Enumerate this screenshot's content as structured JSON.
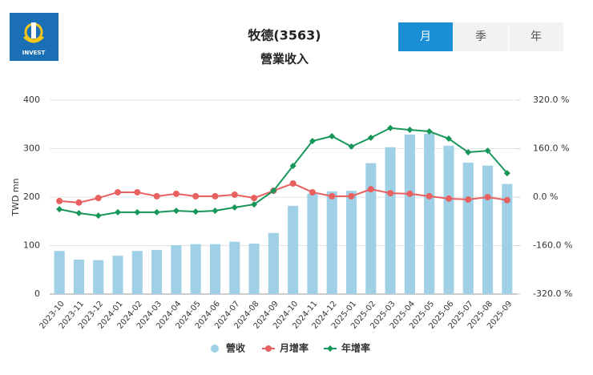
{
  "header": {
    "logo": "INVEST",
    "tabs": [
      "月",
      "季",
      "年"
    ]
  },
  "chart_data": {
    "type": "combo",
    "title": "牧德(3563)",
    "subtitle": "營業收入",
    "y_label": "TWD mn",
    "categories": [
      "2023-10",
      "2023-11",
      "2023-12",
      "2024-01",
      "2024-02",
      "2024-03",
      "2024-04",
      "2024-05",
      "2024-06",
      "2024-07",
      "2024-08",
      "2024-09",
      "2024-10",
      "2024-11",
      "2024-12",
      "2025-01",
      "2025-02",
      "2025-03",
      "2025-04",
      "2025-05",
      "2025-06",
      "2025-07",
      "2025-08",
      "2025-09"
    ],
    "series": [
      {
        "name": "營收",
        "type": "bar",
        "color": "#9fd0e6",
        "values": [
          89,
          71,
          70,
          79,
          89,
          91,
          101,
          103,
          103,
          108,
          104,
          126,
          182,
          207,
          212,
          213,
          270,
          303,
          329,
          331,
          306,
          271,
          265,
          227
        ]
      },
      {
        "name": "月增率",
        "type": "line",
        "axis": "y2",
        "color": "#e8605f",
        "values": [
          -13,
          -18,
          -3,
          16,
          16,
          3,
          11,
          3,
          3,
          8,
          -3,
          21,
          45,
          16,
          3,
          3,
          26,
          13,
          11,
          3,
          -5,
          -8,
          0,
          -10
        ]
      },
      {
        "name": "年增率",
        "type": "line",
        "axis": "y2",
        "marker": "diamond",
        "color": "#17965a",
        "values": [
          -40,
          -53,
          -61,
          -50,
          -50,
          -50,
          -45,
          -48,
          -45,
          -34,
          -24,
          21,
          103,
          185,
          201,
          167,
          196,
          228,
          222,
          217,
          193,
          148,
          153,
          79
        ]
      }
    ],
    "ylim": [
      0,
      400
    ],
    "yticks": [
      0,
      100,
      200,
      300,
      400
    ],
    "y2lim": [
      -320,
      320
    ],
    "y2ticks": [
      {
        "value": -320,
        "label": "-320.0 %"
      },
      {
        "value": -160,
        "label": "-160.0 %"
      },
      {
        "value": 0,
        "label": "0.0 %"
      },
      {
        "value": 160,
        "label": "160.0 %"
      },
      {
        "value": 320,
        "label": "320.0 %"
      }
    ],
    "grid": true
  }
}
